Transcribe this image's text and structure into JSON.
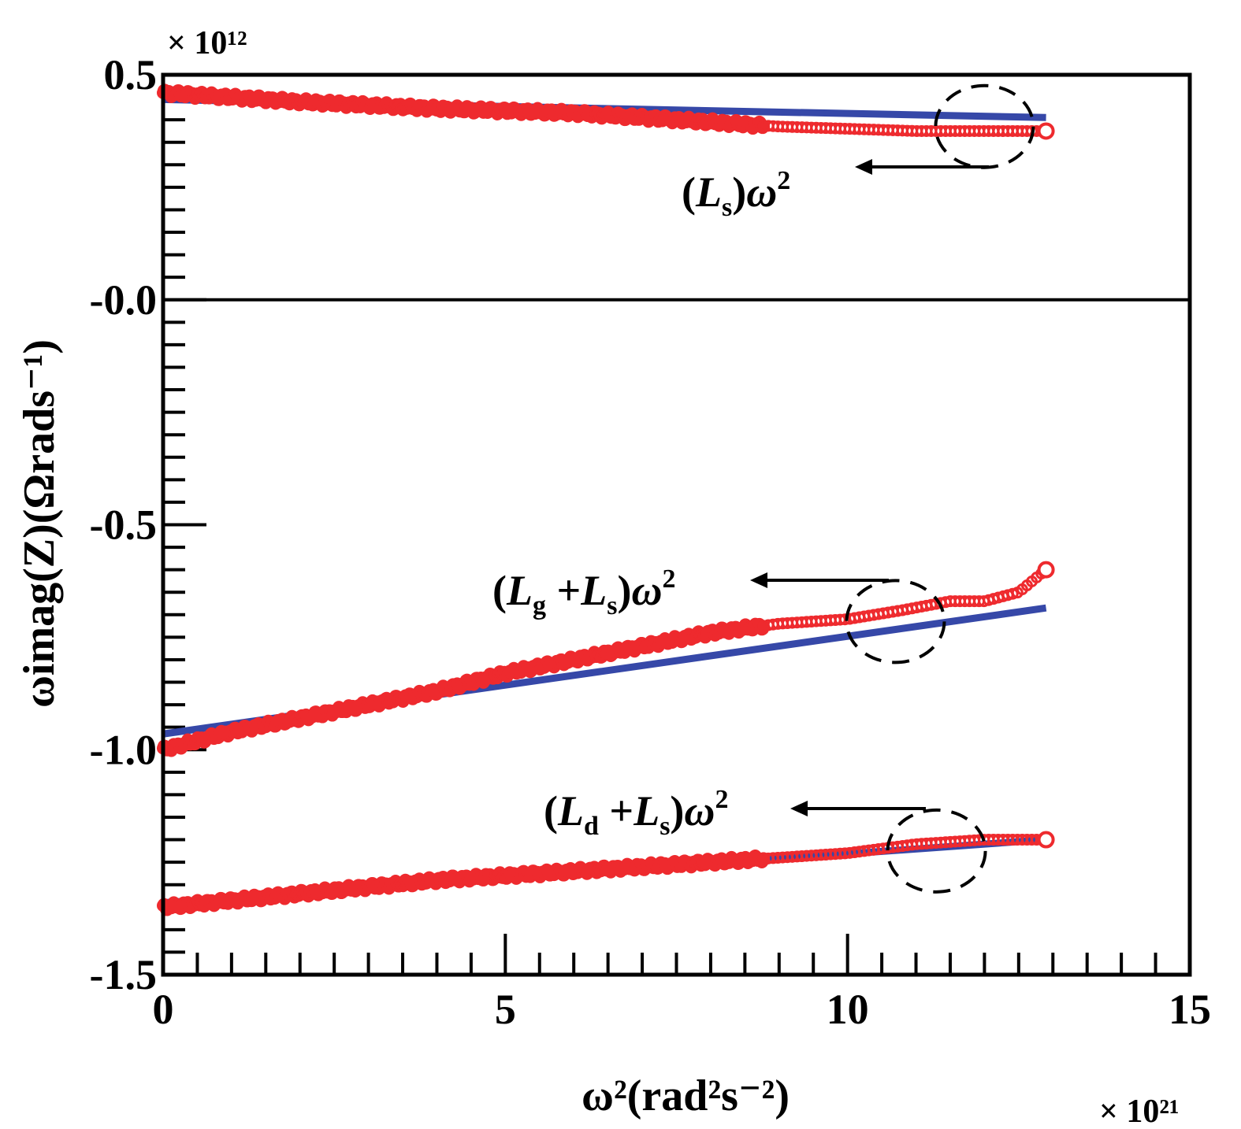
{
  "chart_data": {
    "type": "scatter",
    "title": "",
    "xlabel": "ω²(rad²s⁻²)",
    "ylabel": "ωimag(Z)(Ωrads⁻¹)",
    "x_multiplier": "× 10²¹",
    "y_multiplier": "× 10¹²",
    "xlim": [
      0,
      15
    ],
    "ylim": [
      -1.5,
      0.5
    ],
    "x_ticks": [
      "0",
      "5",
      "10",
      "15"
    ],
    "y_ticks": [
      "0.5",
      "-0.0",
      "-0.5",
      "-1.0",
      "-1.5"
    ],
    "grid": false,
    "annotations": [
      {
        "text": "(Ls)ω²",
        "base": "L",
        "sub": "s",
        "pre": "(",
        "post": ")ω",
        "exp": "2"
      },
      {
        "text": "(Lg+Ls)ω²"
      },
      {
        "text": "(Ld+Ls)ω²"
      }
    ],
    "series": [
      {
        "measured": {
          "x": [
            0,
            2,
            4,
            6,
            8,
            9,
            10,
            11,
            12,
            12.9
          ],
          "y": [
            0.46,
            0.44,
            0.425,
            0.415,
            0.395,
            0.385,
            0.38,
            0.375,
            0.375,
            0.375
          ]
        },
        "fit": {
          "x": [
            0,
            12.9
          ],
          "y": [
            0.445,
            0.405
          ]
        },
        "highlight": {
          "x": 12,
          "y": 0.385
        }
      },
      {
        "measured": {
          "x": [
            0,
            1,
            2,
            3,
            4,
            5,
            6,
            7,
            8,
            9,
            10,
            10.8,
            11.5,
            12,
            12.5,
            12.9
          ],
          "y": [
            -1.0,
            -0.96,
            -0.93,
            -0.9,
            -0.87,
            -0.83,
            -0.8,
            -0.77,
            -0.74,
            -0.72,
            -0.71,
            -0.69,
            -0.67,
            -0.67,
            -0.65,
            -0.6
          ]
        },
        "fit": {
          "x": [
            0,
            12.9
          ],
          "y": [
            -0.965,
            -0.685
          ]
        },
        "highlight": {
          "x": 10.7,
          "y": -0.715
        }
      },
      {
        "measured": {
          "x": [
            0,
            2,
            4,
            6,
            8,
            10,
            11,
            12,
            12.9
          ],
          "y": [
            -1.35,
            -1.32,
            -1.29,
            -1.27,
            -1.25,
            -1.23,
            -1.21,
            -1.2,
            -1.2
          ]
        },
        "fit": {
          "x": [
            0,
            12.9
          ],
          "y": [
            -1.34,
            -1.2
          ]
        },
        "highlight": {
          "x": 11.3,
          "y": -1.225
        }
      }
    ],
    "colors": {
      "measured": "#ee2a2e",
      "fit": "#3648a8",
      "axes": "#000000"
    }
  }
}
